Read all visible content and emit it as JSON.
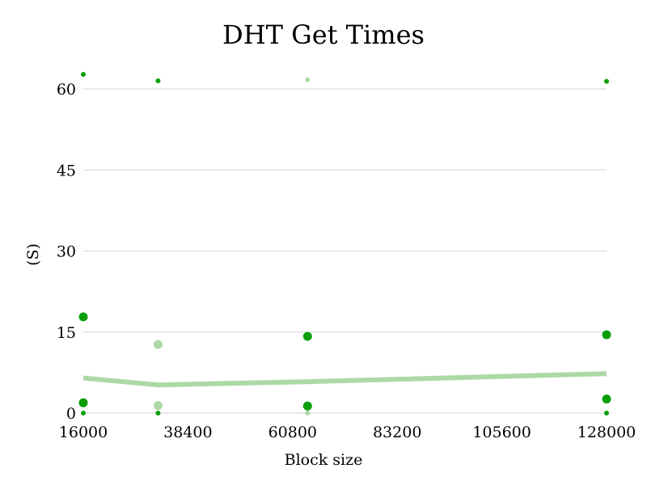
{
  "chart_data": {
    "type": "scatter",
    "title": "DHT Get Times",
    "xlabel": "Block size",
    "ylabel": "(S)",
    "x_ticks": [
      "16000",
      "38400",
      "60800",
      "83200",
      "105600",
      "128000"
    ],
    "y_ticks": [
      "0",
      "15",
      "30",
      "45",
      "60"
    ],
    "xlim": [
      16000,
      128000
    ],
    "ylim": [
      0,
      60
    ],
    "grid": true,
    "colors": {
      "dark": "#0a9e0a",
      "light": "#acd9a5",
      "grid": "#dcdcdc",
      "trend": "#acd9a5"
    },
    "points": [
      {
        "x": 16000,
        "y": 62.7,
        "size": "small",
        "shade": "dark"
      },
      {
        "x": 16000,
        "y": 17.8,
        "size": "large",
        "shade": "dark"
      },
      {
        "x": 16000,
        "y": 1.9,
        "size": "large",
        "shade": "dark"
      },
      {
        "x": 16000,
        "y": 0.0,
        "size": "small",
        "shade": "dark"
      },
      {
        "x": 32000,
        "y": 61.5,
        "size": "small",
        "shade": "dark"
      },
      {
        "x": 32000,
        "y": 12.7,
        "size": "large",
        "shade": "light"
      },
      {
        "x": 32000,
        "y": 1.4,
        "size": "large",
        "shade": "light"
      },
      {
        "x": 32000,
        "y": 0.0,
        "size": "small",
        "shade": "dark"
      },
      {
        "x": 64000,
        "y": 61.7,
        "size": "small",
        "shade": "light"
      },
      {
        "x": 64000,
        "y": 14.2,
        "size": "large",
        "shade": "dark"
      },
      {
        "x": 64000,
        "y": 1.3,
        "size": "large",
        "shade": "dark"
      },
      {
        "x": 64000,
        "y": 0.0,
        "size": "small",
        "shade": "light"
      },
      {
        "x": 128000,
        "y": 61.4,
        "size": "small",
        "shade": "dark"
      },
      {
        "x": 128000,
        "y": 14.5,
        "size": "large",
        "shade": "dark"
      },
      {
        "x": 128000,
        "y": 2.6,
        "size": "large",
        "shade": "dark"
      },
      {
        "x": 128000,
        "y": 0.0,
        "size": "small",
        "shade": "dark"
      }
    ],
    "trend_line": [
      {
        "x": 16000,
        "y": 6.5
      },
      {
        "x": 32000,
        "y": 5.2
      },
      {
        "x": 64000,
        "y": 5.8
      },
      {
        "x": 128000,
        "y": 7.3
      }
    ]
  }
}
